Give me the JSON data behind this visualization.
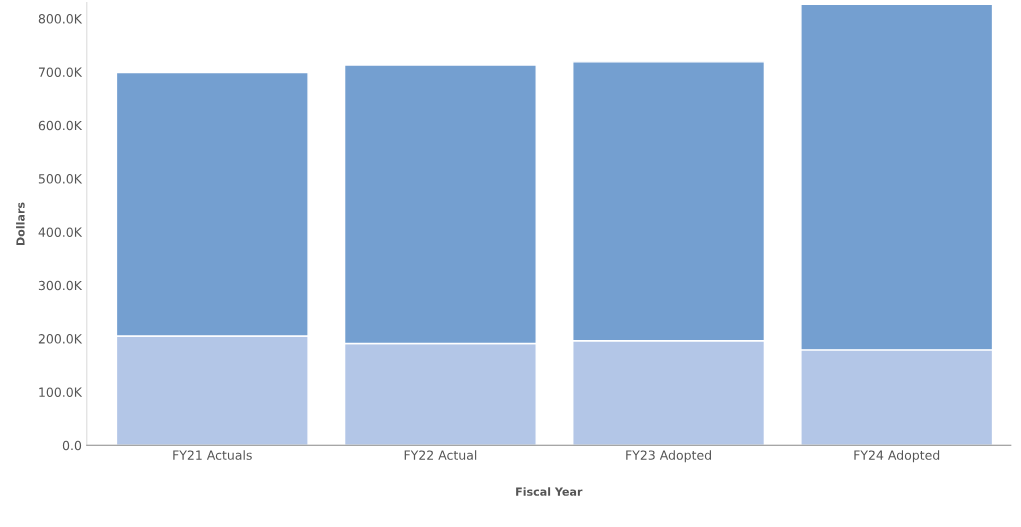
{
  "chart_data": {
    "type": "bar",
    "stacked": true,
    "xlabel": "Fiscal Year",
    "ylabel": "Dollars",
    "categories": [
      "FY21 Actuals",
      "FY22 Actual",
      "FY23 Adopted",
      "FY24 Adopted"
    ],
    "series": [
      {
        "color": "#b3c6e7",
        "values": [
          205000,
          191000,
          196000,
          179000
        ]
      },
      {
        "color": "#749fd0",
        "values": [
          494000,
          522000,
          523000,
          648000
        ]
      }
    ],
    "ylim": [
      0,
      830000
    ],
    "yticks": [
      {
        "value": 0,
        "label": "0.0"
      },
      {
        "value": 100000,
        "label": "100.0K"
      },
      {
        "value": 200000,
        "label": "200.0K"
      },
      {
        "value": 300000,
        "label": "300.0K"
      },
      {
        "value": 400000,
        "label": "400.0K"
      },
      {
        "value": 500000,
        "label": "500.0K"
      },
      {
        "value": 600000,
        "label": "600.0K"
      },
      {
        "value": 700000,
        "label": "700.0K"
      },
      {
        "value": 800000,
        "label": "800.0K"
      }
    ],
    "grid": false,
    "legend": false
  }
}
